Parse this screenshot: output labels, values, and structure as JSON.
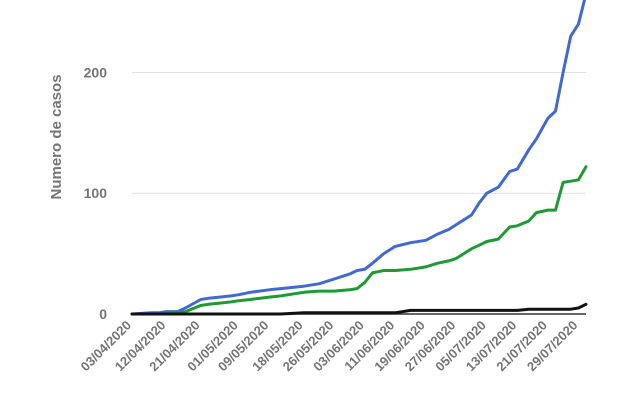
{
  "chart_data": {
    "type": "line",
    "title": "",
    "xlabel": "",
    "ylabel": "Numero de casos",
    "ylim": [
      0,
      260
    ],
    "yticks": [
      0,
      100,
      200
    ],
    "grid": true,
    "legend": "none",
    "x_tick_labels": [
      "03/04/2020",
      "12/04/2020",
      "21/04/2020",
      "01/05/2020",
      "09/05/2020",
      "18/05/2020",
      "26/05/2020",
      "03/06/2020",
      "11/06/2020",
      "19/06/2020",
      "27/06/2020",
      "05/07/2020",
      "13/07/2020",
      "21/07/2020",
      "29/07/2020"
    ],
    "x": [
      "2020-04-03",
      "2020-04-08",
      "2020-04-10",
      "2020-04-12",
      "2020-04-15",
      "2020-04-17",
      "2020-04-21",
      "2020-04-23",
      "2020-04-26",
      "2020-04-29",
      "2020-05-01",
      "2020-05-04",
      "2020-05-09",
      "2020-05-12",
      "2020-05-18",
      "2020-05-22",
      "2020-05-26",
      "2020-05-30",
      "2020-06-01",
      "2020-06-03",
      "2020-06-05",
      "2020-06-08",
      "2020-06-11",
      "2020-06-15",
      "2020-06-19",
      "2020-06-22",
      "2020-06-25",
      "2020-06-27",
      "2020-07-01",
      "2020-07-03",
      "2020-07-05",
      "2020-07-08",
      "2020-07-11",
      "2020-07-13",
      "2020-07-16",
      "2020-07-18",
      "2020-07-21",
      "2020-07-23",
      "2020-07-25",
      "2020-07-27",
      "2020-07-29",
      "2020-07-31"
    ],
    "series": [
      {
        "color": "#4169d4",
        "values": [
          0,
          1,
          1,
          2,
          2,
          5,
          12,
          13,
          14,
          15,
          16,
          18,
          20,
          21,
          23,
          25,
          29,
          33,
          36,
          37,
          42,
          50,
          56,
          59,
          61,
          66,
          70,
          74,
          82,
          92,
          100,
          105,
          118,
          120,
          136,
          145,
          162,
          168,
          200,
          230,
          240,
          265
        ]
      },
      {
        "color": "#1e9a34",
        "values": [
          0,
          0,
          0,
          0,
          1,
          2,
          7,
          8,
          9,
          10,
          11,
          12,
          14,
          15,
          18,
          19,
          19,
          20,
          21,
          26,
          34,
          36,
          36,
          37,
          39,
          42,
          44,
          46,
          54,
          57,
          60,
          62,
          72,
          73,
          77,
          84,
          86,
          86,
          109,
          110,
          111,
          122
        ]
      },
      {
        "color": "#111111",
        "values": [
          0,
          0,
          0,
          0,
          0,
          0,
          0,
          0,
          0,
          0,
          0,
          0,
          0,
          0,
          1,
          1,
          1,
          1,
          1,
          1,
          1,
          1,
          1,
          3,
          3,
          3,
          3,
          3,
          3,
          3,
          3,
          3,
          3,
          3,
          4,
          4,
          4,
          4,
          4,
          4,
          5,
          8
        ]
      }
    ]
  }
}
